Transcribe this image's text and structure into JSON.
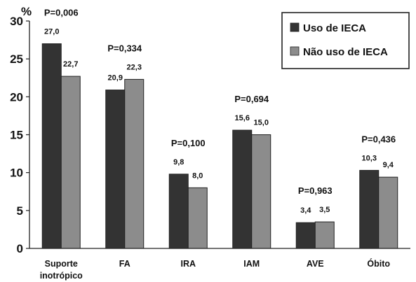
{
  "chart_data": {
    "type": "bar",
    "ylabel": "%",
    "ylim": [
      0,
      30
    ],
    "yticks": [
      "0",
      "5",
      "10",
      "15",
      "20",
      "25",
      "30"
    ],
    "categories": [
      "Suporte inotrópico",
      "FA",
      "IRA",
      "IAM",
      "AVE",
      "Óbito"
    ],
    "category_lines": [
      [
        "Suporte",
        "inotrópico"
      ],
      [
        "FA"
      ],
      [
        "IRA"
      ],
      [
        "IAM"
      ],
      [
        "AVE"
      ],
      [
        "Óbito"
      ]
    ],
    "series": [
      {
        "name": "Uso de IECA",
        "color": "#333333",
        "values": [
          27.0,
          20.9,
          9.8,
          15.6,
          3.4,
          10.3
        ],
        "labels": [
          "27,0",
          "20,9",
          "9,8",
          "15,6",
          "3,4",
          "10,3"
        ]
      },
      {
        "name": "Não uso de IECA",
        "color": "#8c8c8c",
        "values": [
          22.7,
          22.3,
          8.0,
          15.0,
          3.5,
          9.4
        ],
        "labels": [
          "22,7",
          "22,3",
          "8,0",
          "15,0",
          "3,5",
          "9,4"
        ]
      }
    ],
    "p_values": [
      "P=0,006",
      "P=0,334",
      "P=0,100",
      "P=0,694",
      "P=0,963",
      "P=0,436"
    ],
    "legend_position": "top-right",
    "grid": false
  }
}
